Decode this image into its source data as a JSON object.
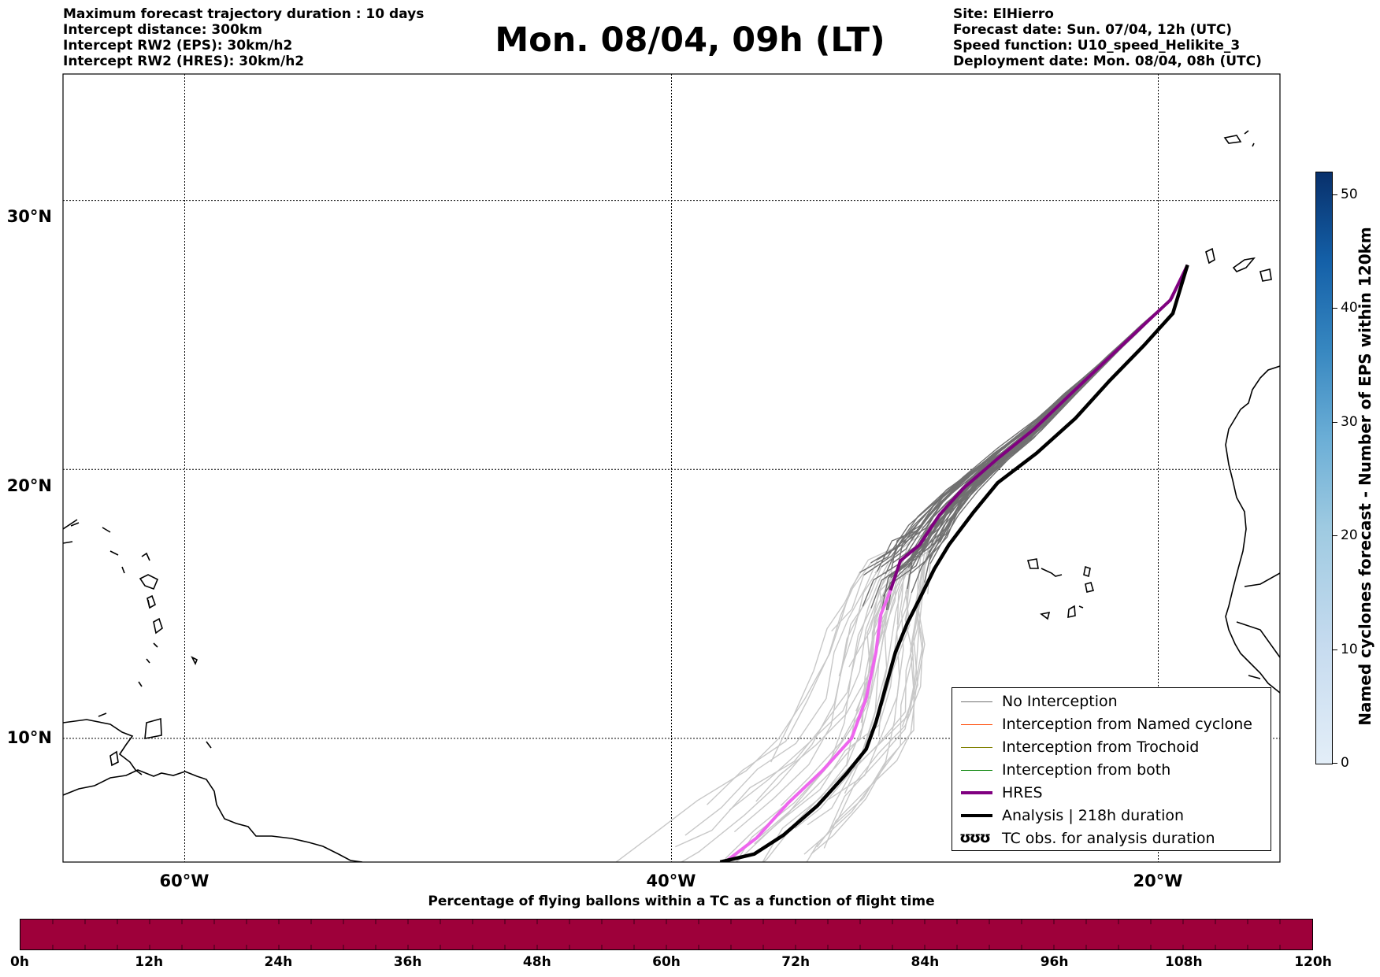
{
  "header": {
    "left_lines": [
      "Maximum forecast trajectory duration : 10 days",
      "Intercept distance: 300km",
      "Intercept RW2 (EPS):  30km/h2",
      "Intercept RW2 (HRES): 30km/h2"
    ],
    "title": "Mon. 08/04, 09h (LT)",
    "right_lines": [
      "Site: ElHierro",
      "Forecast date: Sun. 07/04, 12h (UTC)",
      "Speed function: U10_speed_Helikite_3",
      "Deployment date: Mon. 08/04, 08h (UTC)"
    ]
  },
  "map": {
    "lon_range": [
      -65,
      -15
    ],
    "lat_range": [
      5.4,
      34.7
    ],
    "lat_labels": [
      {
        "value": 30,
        "text": "30°N"
      },
      {
        "value": 20,
        "text": "20°N"
      },
      {
        "value": 10,
        "text": "10°N"
      }
    ],
    "lon_labels": [
      {
        "value": -60,
        "text": "60°W"
      },
      {
        "value": -40,
        "text": "40°W"
      },
      {
        "value": -20,
        "text": "20°W"
      }
    ],
    "colors": {
      "no_interception": "#707070",
      "eps_late": "#c8c8c8",
      "hres": "#800080",
      "hres_late": "#ee66ee",
      "analysis": "#000000"
    },
    "hres_track": [
      [
        -18.8,
        27.6
      ],
      [
        -19.5,
        26.3
      ],
      [
        -20.8,
        25.2
      ],
      [
        -22.2,
        24.0
      ],
      [
        -23.6,
        22.8
      ],
      [
        -25.1,
        21.5
      ],
      [
        -26.6,
        20.4
      ],
      [
        -28.0,
        19.3
      ],
      [
        -29.0,
        18.3
      ],
      [
        -29.8,
        17.2
      ],
      [
        -30.6,
        16.6
      ],
      [
        -31.0,
        15.5
      ],
      [
        -31.4,
        14.6
      ],
      [
        -31.6,
        13.2
      ],
      [
        -32.0,
        11.5
      ],
      [
        -32.6,
        10.0
      ],
      [
        -33.8,
        8.8
      ],
      [
        -35.2,
        7.6
      ],
      [
        -36.5,
        6.3
      ],
      [
        -37.8,
        5.4
      ]
    ],
    "hres_change_index": 11,
    "analysis_track": [
      [
        -18.8,
        27.6
      ],
      [
        -19.4,
        25.8
      ],
      [
        -20.6,
        24.6
      ],
      [
        -22.0,
        23.3
      ],
      [
        -23.4,
        21.9
      ],
      [
        -25.0,
        20.6
      ],
      [
        -26.6,
        19.5
      ],
      [
        -27.6,
        18.4
      ],
      [
        -28.6,
        17.2
      ],
      [
        -29.2,
        16.3
      ],
      [
        -29.8,
        15.2
      ],
      [
        -30.3,
        14.3
      ],
      [
        -30.8,
        13.2
      ],
      [
        -31.2,
        11.9
      ],
      [
        -31.6,
        10.6
      ],
      [
        -32.0,
        9.6
      ],
      [
        -32.8,
        8.7
      ],
      [
        -34.0,
        7.5
      ],
      [
        -35.4,
        6.4
      ],
      [
        -36.6,
        5.7
      ],
      [
        -38.0,
        5.4
      ]
    ]
  },
  "legend": {
    "items": [
      {
        "label": "No Interception",
        "color": "#707070",
        "width": 1.5
      },
      {
        "label": "Interception from Named cyclone",
        "color": "#ff4500",
        "width": 1.5
      },
      {
        "label": "Interception from Trochoid",
        "color": "#808000",
        "width": 1.5
      },
      {
        "label": "Interception from both",
        "color": "#008000",
        "width": 1.5
      },
      {
        "label": "HRES",
        "color": "#800080",
        "width": 4
      },
      {
        "label": "Analysis | 218h duration",
        "color": "#000000",
        "width": 4
      },
      {
        "label": "TC obs. for analysis duration",
        "color": "#000000",
        "width": 0,
        "symbol": "ʊʊʊ"
      }
    ]
  },
  "colorbar_vertical": {
    "label": "Named cyclones forecast - Number of EPS within 120km",
    "range": [
      0,
      52
    ],
    "ticks": [
      0,
      10,
      20,
      30,
      40,
      50
    ]
  },
  "colorbar_horizontal": {
    "title": "Percentage of flying ballons within a TC as a function of flight time",
    "color": "#9e003a",
    "labels": [
      "0h",
      "12h",
      "24h",
      "36h",
      "48h",
      "60h",
      "72h",
      "84h",
      "96h",
      "108h",
      "120h"
    ]
  }
}
